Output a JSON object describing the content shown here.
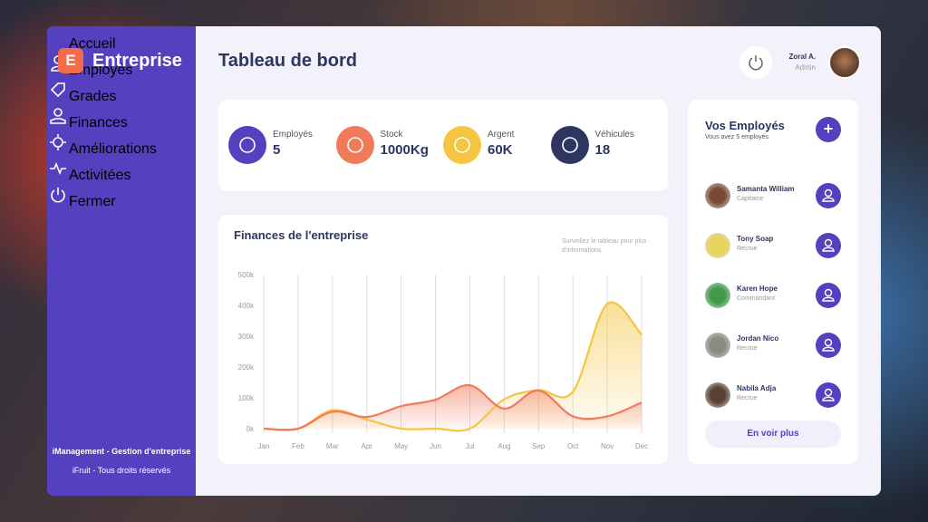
{
  "sidebar": {
    "brand_letter": "E",
    "brand": "Entreprise",
    "menu": [
      {
        "label": "Accueil",
        "active": true
      },
      {
        "label": "Employés",
        "active": false
      },
      {
        "label": "Grades",
        "active": false
      },
      {
        "label": "Finances",
        "active": false
      },
      {
        "label": "Améliorations",
        "active": false
      },
      {
        "label": "Activitées",
        "active": false
      },
      {
        "label": "Fermer",
        "active": false
      }
    ],
    "footer_title": "iManagement - Gestion d'entreprise",
    "footer_copyright": "iFruit - Tous droits réservés"
  },
  "header": {
    "title": "Tableau de bord",
    "user_name": "Zoral A.",
    "user_role": "Admin"
  },
  "stats": [
    {
      "label": "Employés",
      "value": "5"
    },
    {
      "label": "Stock",
      "value": "1000Kg"
    },
    {
      "label": "Argent",
      "value": "60K"
    },
    {
      "label": "Véhicules",
      "value": "18"
    }
  ],
  "chart_data": {
    "type": "area",
    "title": "Finances de l'entreprise",
    "note": "Surveillez le tableau pour plus d'informations",
    "categories": [
      "Jan",
      "Feb",
      "Mar",
      "Apr",
      "May",
      "Jun",
      "Jul",
      "Aug",
      "Sep",
      "Oct",
      "Nov",
      "Dec"
    ],
    "series": [
      {
        "color": "#f5c542",
        "values": [
          0,
          0,
          60,
          30,
          0,
          0,
          0,
          95,
          125,
          120,
          405,
          305
        ]
      },
      {
        "color": "#f07a5a",
        "values": [
          0,
          0,
          55,
          38,
          73,
          94,
          141,
          65,
          124,
          40,
          40,
          85
        ]
      }
    ],
    "ylim": [
      0,
      500
    ],
    "yticks": [
      {
        "value": 0,
        "label": "0k"
      },
      {
        "value": 100,
        "label": "100k"
      },
      {
        "value": 200,
        "label": "200k"
      },
      {
        "value": 300,
        "label": "300k"
      },
      {
        "value": 400,
        "label": "400k"
      },
      {
        "value": 500,
        "label": "500k"
      }
    ],
    "grid": true
  },
  "employees": {
    "title": "Vos Employés",
    "subtitle": "Vous avez 5 employés",
    "list": [
      {
        "name": "Samanta William",
        "role": "Capitaine"
      },
      {
        "name": "Tony Soap",
        "role": "Recrue"
      },
      {
        "name": "Karen Hope",
        "role": "Commandant"
      },
      {
        "name": "Jordan Nico",
        "role": "Recrue"
      },
      {
        "name": "Nabila Adja",
        "role": "Recrue"
      }
    ],
    "button": "En voir plus"
  }
}
